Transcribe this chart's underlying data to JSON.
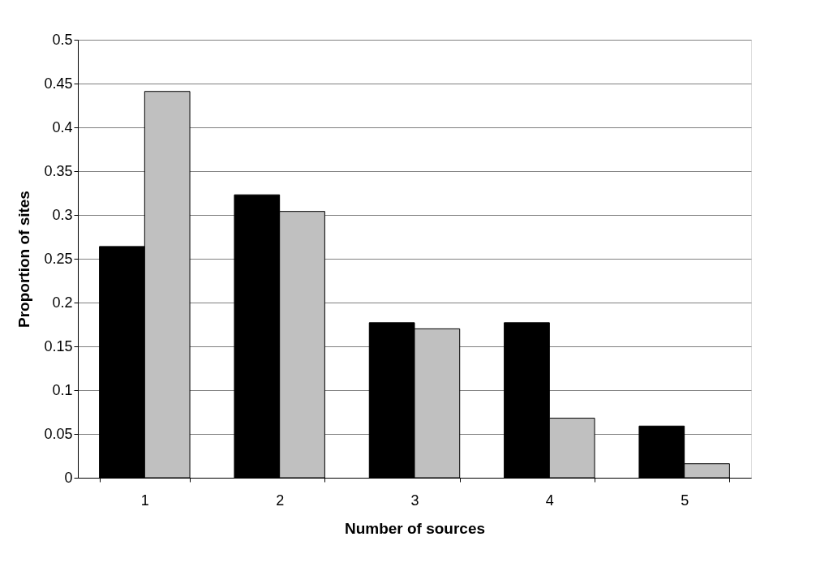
{
  "chart_data": {
    "type": "bar",
    "xlabel": "Number of sources",
    "ylabel": "Proportion of sites",
    "categories": [
      "1",
      "2",
      "3",
      "4",
      "5"
    ],
    "series": [
      {
        "color": "#000000",
        "values": [
          0.264,
          0.323,
          0.177,
          0.177,
          0.059
        ]
      },
      {
        "color": "#c0c0c0",
        "values": [
          0.441,
          0.304,
          0.17,
          0.068,
          0.016
        ]
      }
    ],
    "ylim": [
      0,
      0.5
    ],
    "yticks": [
      0,
      0.05,
      0.1,
      0.15,
      0.2,
      0.25,
      0.3,
      0.35,
      0.4,
      0.45,
      0.5
    ],
    "grid": "y"
  }
}
